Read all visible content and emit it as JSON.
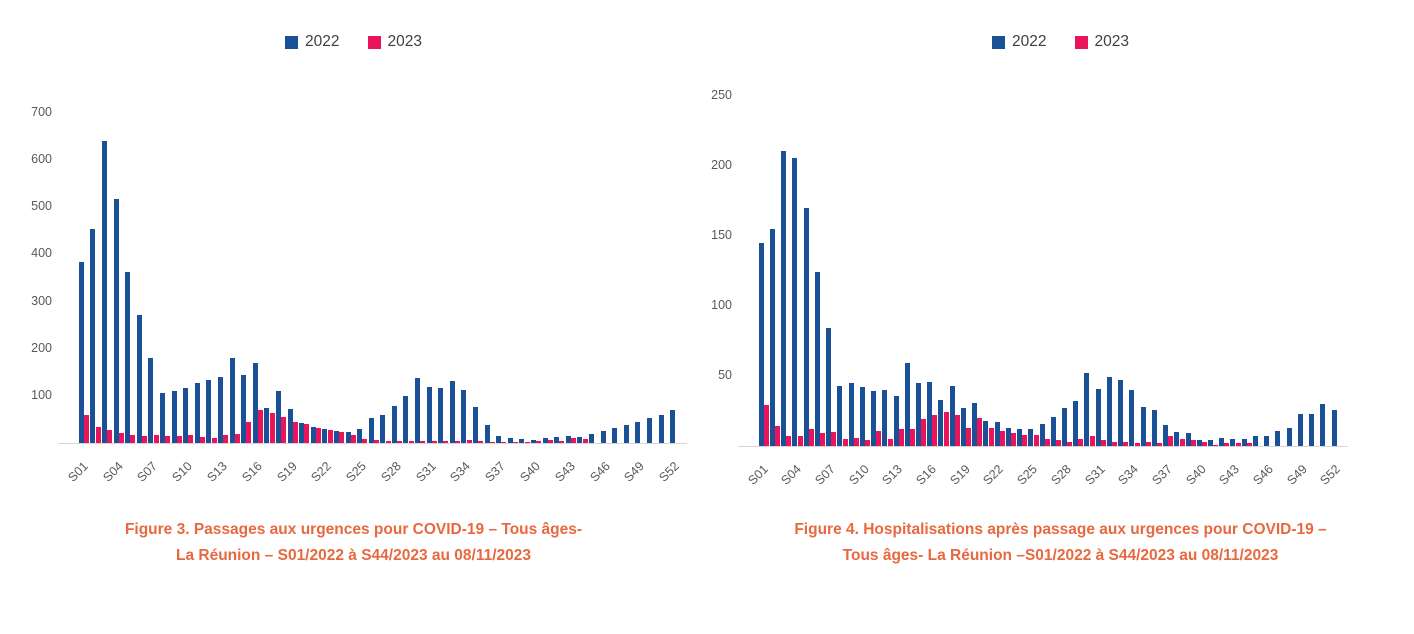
{
  "colors": {
    "series_2022": "#1a5096",
    "series_2023": "#ea145c",
    "axis_line": "#d6d6d6",
    "tick_text": "#595959",
    "caption_text": "#e8683f",
    "legend_text": "#3f3f3f"
  },
  "legend": {
    "items": [
      "2022",
      "2023"
    ],
    "position": "top-center"
  },
  "chart_data": [
    {
      "type": "bar",
      "caption_lines": [
        "Figure 3. Passages aux urgences pour COVID-19 – Tous âges-",
        "La Réunion – S01/2022 à S44/2023 au 08/11/2023"
      ],
      "categories": [
        "S01",
        "S02",
        "S03",
        "S04",
        "S05",
        "S06",
        "S07",
        "S08",
        "S09",
        "S10",
        "S11",
        "S12",
        "S13",
        "S14",
        "S15",
        "S16",
        "S17",
        "S18",
        "S19",
        "S20",
        "S21",
        "S22",
        "S23",
        "S24",
        "S25",
        "S26",
        "S27",
        "S28",
        "S29",
        "S30",
        "S31",
        "S32",
        "S33",
        "S34",
        "S35",
        "S36",
        "S37",
        "S38",
        "S39",
        "S40",
        "S41",
        "S42",
        "S43",
        "S44",
        "S45",
        "S46",
        "S47",
        "S48",
        "S49",
        "S50",
        "S51",
        "S52"
      ],
      "x_tick_step": 3,
      "ylim": [
        0,
        700
      ],
      "y_ticks": [
        100,
        200,
        300,
        400,
        500,
        600,
        700
      ],
      "grid": false,
      "series": [
        {
          "name": "2022",
          "color": "#1a5096",
          "values": [
            383,
            455,
            640,
            518,
            363,
            272,
            180,
            106,
            110,
            117,
            128,
            133,
            140,
            180,
            144,
            170,
            75,
            111,
            72,
            43,
            33,
            29,
            25,
            23,
            29,
            52,
            59,
            79,
            100,
            138,
            119,
            116,
            132,
            112,
            76,
            38,
            14,
            10,
            8,
            6,
            10,
            12,
            15,
            13,
            20,
            26,
            31,
            38,
            45,
            54,
            59,
            71
          ]
        },
        {
          "name": "2023",
          "color": "#ea145c",
          "values": [
            60,
            35,
            28,
            22,
            18,
            15,
            18,
            15,
            14,
            18,
            12,
            10,
            16,
            20,
            45,
            70,
            63,
            55,
            44,
            40,
            32,
            28,
            24,
            16,
            8,
            6,
            4,
            5,
            5,
            4,
            5,
            4,
            4,
            6,
            4,
            3,
            3,
            2,
            3,
            5,
            6,
            4,
            10,
            8
          ]
        }
      ]
    },
    {
      "type": "bar",
      "caption_lines": [
        "Figure 4. Hospitalisations après passage aux urgences pour COVID-19 –",
        "Tous âges- La Réunion –S01/2022 à S44/2023 au 08/11/2023"
      ],
      "categories": [
        "S01",
        "S02",
        "S03",
        "S04",
        "S05",
        "S06",
        "S07",
        "S08",
        "S09",
        "S10",
        "S11",
        "S12",
        "S13",
        "S14",
        "S15",
        "S16",
        "S17",
        "S18",
        "S19",
        "S20",
        "S21",
        "S22",
        "S23",
        "S24",
        "S25",
        "S26",
        "S27",
        "S28",
        "S29",
        "S30",
        "S31",
        "S32",
        "S33",
        "S34",
        "S35",
        "S36",
        "S37",
        "S38",
        "S39",
        "S40",
        "S41",
        "S42",
        "S43",
        "S44",
        "S45",
        "S46",
        "S47",
        "S48",
        "S49",
        "S50",
        "S51",
        "S52"
      ],
      "x_tick_step": 3,
      "ylim": [
        0,
        250
      ],
      "y_ticks": [
        50,
        100,
        150,
        200,
        250
      ],
      "grid": false,
      "series": [
        {
          "name": "2022",
          "color": "#1a5096",
          "values": [
            145,
            155,
            211,
            206,
            170,
            124,
            84,
            43,
            45,
            42,
            39,
            40,
            36,
            59,
            45,
            46,
            33,
            43,
            27,
            31,
            18,
            17,
            13,
            12,
            12,
            16,
            21,
            27,
            32,
            52,
            41,
            49,
            47,
            40,
            28,
            26,
            15,
            10,
            9,
            4,
            4,
            6,
            5,
            5,
            7,
            7,
            11,
            13,
            23,
            23,
            30,
            26
          ]
        },
        {
          "name": "2023",
          "color": "#ea145c",
          "values": [
            29,
            14,
            7,
            7,
            12,
            9,
            10,
            5,
            6,
            4,
            11,
            5,
            12,
            12,
            19,
            22,
            24,
            22,
            13,
            20,
            13,
            11,
            9,
            8,
            8,
            5,
            4,
            3,
            5,
            7,
            4,
            3,
            3,
            2,
            3,
            2,
            7,
            5,
            4,
            3,
            1,
            2,
            2,
            2
          ]
        }
      ]
    }
  ]
}
